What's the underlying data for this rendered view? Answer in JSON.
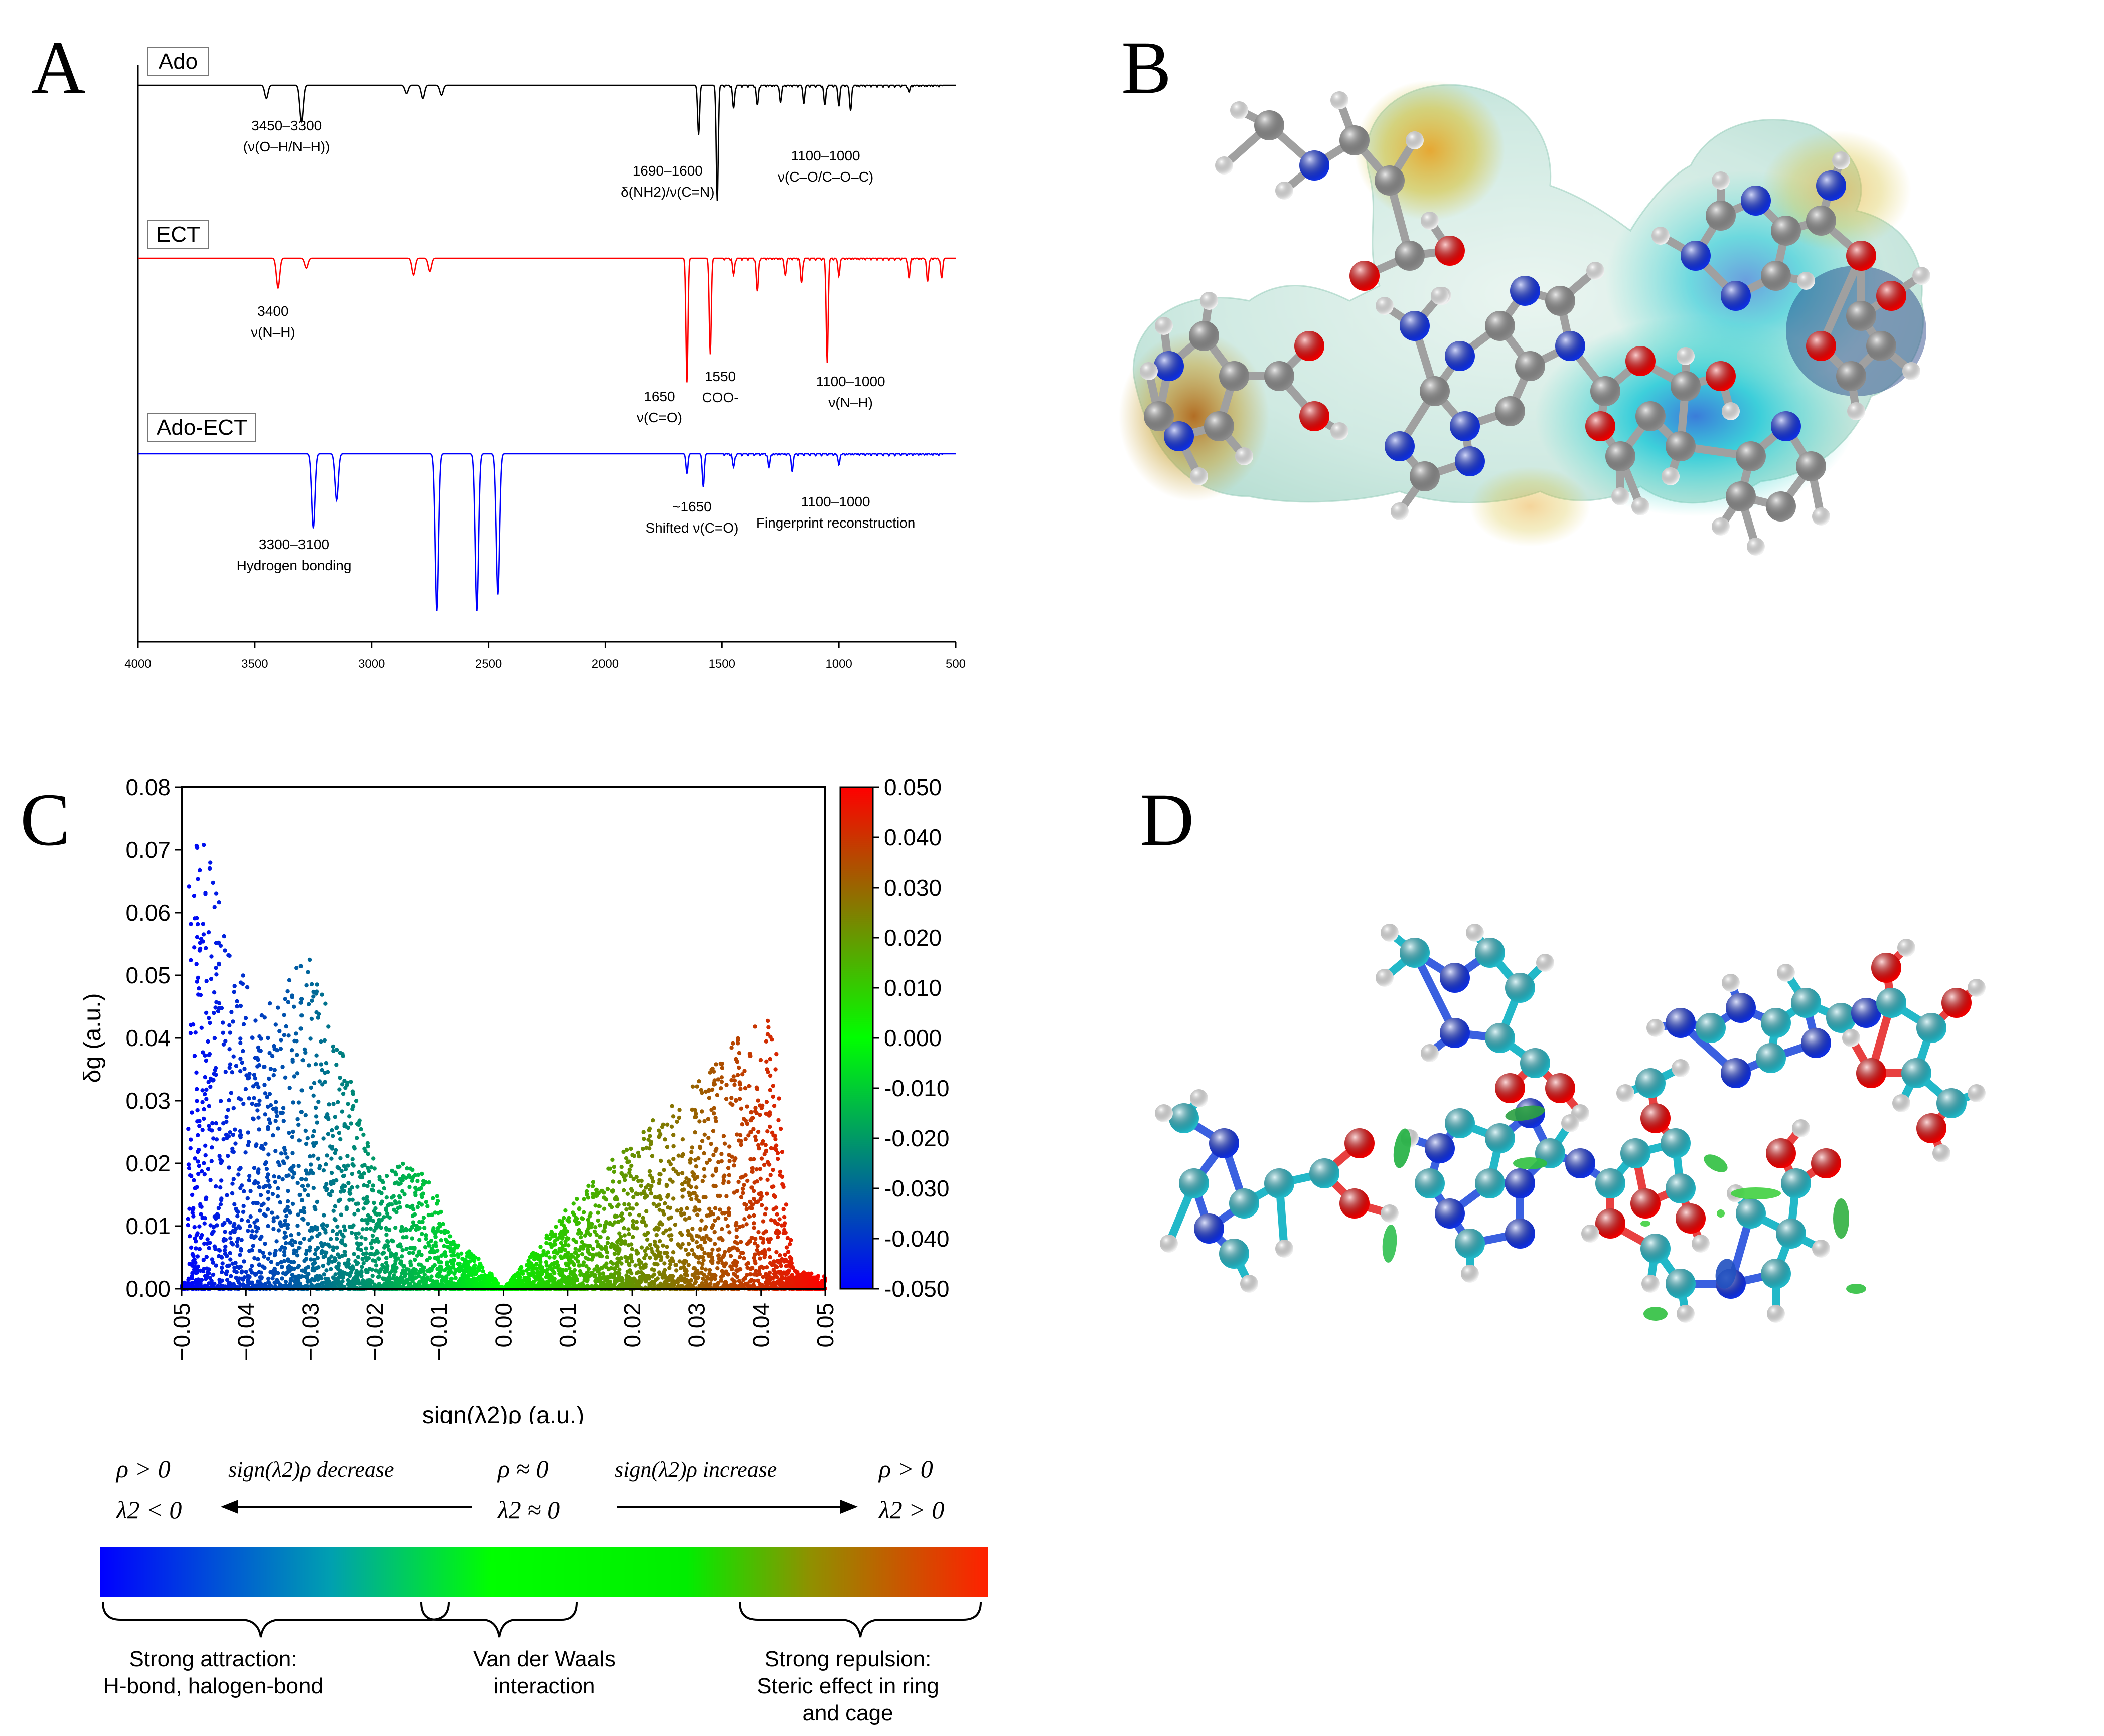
{
  "panels": {
    "a": {
      "letter": "A"
    },
    "b": {
      "letter": "B"
    },
    "c": {
      "letter": "C"
    },
    "d": {
      "letter": "D"
    }
  },
  "chart_data": [
    {
      "type": "line",
      "panel": "A",
      "title": "",
      "xlabel": "",
      "ylabel": "",
      "xlim": [
        4000,
        500
      ],
      "x_reversed": true,
      "x_ticks": [
        "4000",
        "3500",
        "3000",
        "2500",
        "2000",
        "1500",
        "1000",
        "500"
      ],
      "series": [
        {
          "name": "Ado",
          "color": "#000000",
          "peaks": [
            [
              3450,
              0.08
            ],
            [
              3300,
              0.22
            ],
            [
              2850,
              0.05
            ],
            [
              2780,
              0.08
            ],
            [
              2700,
              0.06
            ],
            [
              1600,
              0.3
            ],
            [
              1520,
              0.7
            ],
            [
              1450,
              0.14
            ],
            [
              1350,
              0.12
            ],
            [
              1250,
              0.1
            ],
            [
              1150,
              0.1
            ],
            [
              1060,
              0.12
            ],
            [
              1000,
              0.12
            ],
            [
              950,
              0.15
            ],
            [
              700,
              0.04
            ]
          ],
          "annotations": [
            {
              "x": 3450,
              "lines": [
                "3450–3300",
                "(ν(O–H/N–H))"
              ]
            },
            {
              "x": 1690,
              "lines": [
                "1690–1600",
                "δ(NH2)/ν(C=N)"
              ]
            },
            {
              "x": 1100,
              "lines": [
                "1100–1000",
                "ν(C–O/C–O–C)"
              ]
            }
          ]
        },
        {
          "name": "ECT",
          "color": "#ff0000",
          "peaks": [
            [
              3400,
              0.18
            ],
            [
              3280,
              0.06
            ],
            [
              2820,
              0.1
            ],
            [
              2750,
              0.08
            ],
            [
              1650,
              0.75
            ],
            [
              1550,
              0.58
            ],
            [
              1450,
              0.1
            ],
            [
              1350,
              0.2
            ],
            [
              1230,
              0.1
            ],
            [
              1160,
              0.15
            ],
            [
              1050,
              0.62
            ],
            [
              1000,
              0.1
            ],
            [
              700,
              0.12
            ],
            [
              620,
              0.14
            ],
            [
              560,
              0.12
            ]
          ],
          "annotations": [
            {
              "x": 3400,
              "lines": [
                "3400",
                "ν(N–H)"
              ]
            },
            {
              "x": 1650,
              "lines": [
                "1650",
                "ν(C=O)"
              ]
            },
            {
              "x": 1550,
              "lines": [
                "1550",
                "COO-"
              ]
            },
            {
              "x": 1100,
              "lines": [
                "1100–1000",
                "ν(N–H)"
              ]
            }
          ]
        },
        {
          "name": "Ado-ECT",
          "color": "#0000ff",
          "peaks": [
            [
              3250,
              0.45
            ],
            [
              3150,
              0.28
            ],
            [
              2720,
              0.95
            ],
            [
              2550,
              0.95
            ],
            [
              2460,
              0.85
            ],
            [
              1650,
              0.12
            ],
            [
              1580,
              0.2
            ],
            [
              1450,
              0.08
            ],
            [
              1300,
              0.08
            ],
            [
              1200,
              0.1
            ],
            [
              1000,
              0.06
            ]
          ],
          "annotations": [
            {
              "x": 3300,
              "lines": [
                "3300–3100",
                "Hydrogen bonding"
              ]
            },
            {
              "x": 1650,
              "lines": [
                "~1650",
                "Shifted ν(C=O)"
              ]
            },
            {
              "x": 1100,
              "lines": [
                "1100–1000",
                "Fingerprint reconstruction"
              ]
            }
          ]
        }
      ]
    },
    {
      "type": "scatter",
      "panel": "C",
      "title": "",
      "xlabel": "sign(λ2)ρ (a.u.)",
      "ylabel": "δg (a.u.)",
      "xlim": [
        -0.05,
        0.05
      ],
      "ylim": [
        0.0,
        0.08
      ],
      "x_ticks": [
        "−0.05",
        "−0.04",
        "−0.03",
        "−0.02",
        "−0.01",
        "0.00",
        "0.01",
        "0.02",
        "0.03",
        "0.04",
        "0.05"
      ],
      "y_ticks": [
        "0.00",
        "0.01",
        "0.02",
        "0.03",
        "0.04",
        "0.05",
        "0.06",
        "0.07",
        "0.08"
      ],
      "colorbar": {
        "range": [
          -0.05,
          0.05
        ],
        "ticks": [
          "0.050",
          "0.040",
          "0.030",
          "0.020",
          "0.010",
          "0.000",
          "-0.010",
          "-0.020",
          "-0.030",
          "-0.040",
          "-0.050"
        ],
        "colors": [
          "#0000ff",
          "#00ff00",
          "#ff0000"
        ]
      },
      "point_envelope": [
        [
          -0.049,
          0.077
        ],
        [
          -0.045,
          0.067
        ],
        [
          -0.042,
          0.055
        ],
        [
          -0.037,
          0.045
        ],
        [
          -0.03,
          0.054
        ],
        [
          -0.025,
          0.038
        ],
        [
          -0.02,
          0.02
        ],
        [
          -0.012,
          0.02
        ],
        [
          -0.008,
          0.008
        ],
        [
          -0.004,
          0.005
        ],
        [
          0.0,
          0.0
        ],
        [
          0.004,
          0.005
        ],
        [
          0.01,
          0.013
        ],
        [
          0.02,
          0.024
        ],
        [
          0.03,
          0.033
        ],
        [
          0.036,
          0.04
        ],
        [
          0.042,
          0.044
        ],
        [
          0.045,
          0.003
        ],
        [
          0.05,
          0.002
        ]
      ]
    }
  ],
  "legend_c": {
    "left_cond1": "ρ > 0",
    "left_cond2": "λ2 < 0",
    "left_arrow_label": "sign(λ2)ρ decrease",
    "mid_cond1": "ρ ≈ 0",
    "mid_cond2": "λ2 ≈ 0",
    "right_arrow_label": "sign(λ2)ρ increase",
    "right_cond1": "ρ > 0",
    "right_cond2": "λ2 > 0",
    "gradient_colors": [
      "#0000ff",
      "#00ff00",
      "#ff0000"
    ],
    "regions": [
      {
        "lines": [
          "Strong attraction:",
          "H-bond, halogen-bond"
        ]
      },
      {
        "lines": [
          "Van der Waals",
          "interaction"
        ]
      },
      {
        "lines": [
          "Strong repulsion:",
          "Steric effect in ring",
          "and cage"
        ]
      }
    ]
  },
  "molecule_colors": {
    "carbon_b": "#8c8c8c",
    "carbon_d": "#22b8c8",
    "oxygen": "#ee0000",
    "nitrogen": "#1030e0",
    "hydrogen": "#f0f0f0"
  }
}
